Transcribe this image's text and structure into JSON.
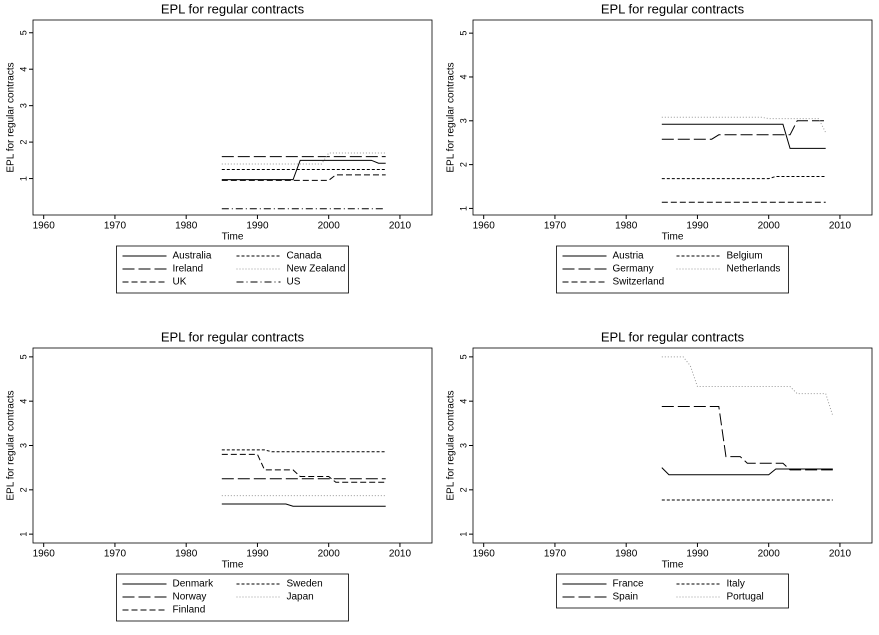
{
  "chart_data": [
    {
      "type": "line",
      "title": "EPL for regular contracts",
      "x_label": "Time",
      "y_label": "EPL for regular contracts",
      "x": [
        1985,
        1986,
        1987,
        1988,
        1989,
        1990,
        1991,
        1992,
        1993,
        1994,
        1995,
        1996,
        1997,
        1998,
        1999,
        2000,
        2001,
        2002,
        2003,
        2004,
        2005,
        2006,
        2007,
        2008
      ],
      "xlim": [
        1958.5,
        2014.5
      ],
      "xticks": [
        1960,
        1970,
        1980,
        1990,
        2000,
        2010
      ],
      "ylim": [
        0,
        5.35
      ],
      "yticks": [
        1,
        2,
        3,
        4,
        5
      ],
      "series": [
        {
          "name": "Australia",
          "color": "#000000",
          "style": "solid",
          "values": [
            0.97,
            0.97,
            0.97,
            0.97,
            0.97,
            0.97,
            0.97,
            0.97,
            0.97,
            0.97,
            0.97,
            1.5,
            1.5,
            1.5,
            1.5,
            1.5,
            1.5,
            1.5,
            1.5,
            1.5,
            1.5,
            1.5,
            1.42,
            1.42
          ]
        },
        {
          "name": "Canada",
          "color": "#000000",
          "style": "shortdash",
          "values": [
            1.25,
            1.25,
            1.25,
            1.25,
            1.25,
            1.25,
            1.25,
            1.25,
            1.25,
            1.25,
            1.25,
            1.25,
            1.25,
            1.25,
            1.25,
            1.25,
            1.25,
            1.25,
            1.25,
            1.25,
            1.25,
            1.25,
            1.25,
            1.25
          ]
        },
        {
          "name": "Ireland",
          "color": "#000000",
          "style": "longdash",
          "values": [
            1.6,
            1.6,
            1.6,
            1.6,
            1.6,
            1.6,
            1.6,
            1.6,
            1.6,
            1.6,
            1.6,
            1.6,
            1.6,
            1.6,
            1.6,
            1.6,
            1.6,
            1.6,
            1.6,
            1.6,
            1.6,
            1.6,
            1.6,
            1.6
          ]
        },
        {
          "name": "New Zealand",
          "color": "#999999",
          "style": "dot",
          "values": [
            1.4,
            1.4,
            1.4,
            1.4,
            1.4,
            1.4,
            1.4,
            1.4,
            1.4,
            1.4,
            1.4,
            1.4,
            1.4,
            1.4,
            1.4,
            1.7,
            1.7,
            1.7,
            1.7,
            1.7,
            1.7,
            1.7,
            1.7,
            1.7
          ]
        },
        {
          "name": "UK",
          "color": "#000000",
          "style": "dash",
          "values": [
            0.95,
            0.95,
            0.95,
            0.95,
            0.95,
            0.95,
            0.95,
            0.95,
            0.95,
            0.95,
            0.95,
            0.95,
            0.95,
            0.95,
            0.95,
            0.95,
            1.1,
            1.1,
            1.1,
            1.1,
            1.1,
            1.1,
            1.1,
            1.1
          ]
        },
        {
          "name": "US",
          "color": "#000000",
          "style": "dashdot",
          "values": [
            0.17,
            0.17,
            0.17,
            0.17,
            0.17,
            0.17,
            0.17,
            0.17,
            0.17,
            0.17,
            0.17,
            0.17,
            0.17,
            0.17,
            0.17,
            0.17,
            0.17,
            0.17,
            0.17,
            0.17,
            0.17,
            0.17,
            0.17,
            0.17
          ]
        }
      ]
    },
    {
      "type": "line",
      "title": "EPL for regular contracts",
      "x_label": "Time",
      "y_label": "EPL for regular contracts",
      "x": [
        1985,
        1986,
        1987,
        1988,
        1989,
        1990,
        1991,
        1992,
        1993,
        1994,
        1995,
        1996,
        1997,
        1998,
        1999,
        2000,
        2001,
        2002,
        2003,
        2004,
        2005,
        2006,
        2007,
        2008
      ],
      "xlim": [
        1958.5,
        2014.5
      ],
      "xticks": [
        1960,
        1970,
        1980,
        1990,
        2000,
        2010
      ],
      "ylim": [
        0.85,
        5.3
      ],
      "yticks": [
        1,
        2,
        3,
        4,
        5
      ],
      "series": [
        {
          "name": "Austria",
          "color": "#000000",
          "style": "solid",
          "values": [
            2.92,
            2.92,
            2.92,
            2.92,
            2.92,
            2.92,
            2.92,
            2.92,
            2.92,
            2.92,
            2.92,
            2.92,
            2.92,
            2.92,
            2.92,
            2.92,
            2.92,
            2.92,
            2.37,
            2.37,
            2.37,
            2.37,
            2.37,
            2.37
          ]
        },
        {
          "name": "Belgium",
          "color": "#000000",
          "style": "shortdash",
          "values": [
            1.68,
            1.68,
            1.68,
            1.68,
            1.68,
            1.68,
            1.68,
            1.68,
            1.68,
            1.68,
            1.68,
            1.68,
            1.68,
            1.68,
            1.68,
            1.68,
            1.73,
            1.73,
            1.73,
            1.73,
            1.73,
            1.73,
            1.73,
            1.73
          ]
        },
        {
          "name": "Germany",
          "color": "#000000",
          "style": "longdash",
          "values": [
            2.58,
            2.58,
            2.58,
            2.58,
            2.58,
            2.58,
            2.58,
            2.58,
            2.68,
            2.68,
            2.68,
            2.68,
            2.68,
            2.68,
            2.68,
            2.68,
            2.68,
            2.68,
            2.68,
            3.0,
            3.0,
            3.0,
            3.0,
            3.0
          ]
        },
        {
          "name": "Netherlands",
          "color": "#999999",
          "style": "dot",
          "values": [
            3.08,
            3.08,
            3.08,
            3.08,
            3.08,
            3.08,
            3.08,
            3.08,
            3.08,
            3.08,
            3.08,
            3.08,
            3.08,
            3.08,
            3.08,
            3.05,
            3.05,
            3.05,
            3.05,
            3.05,
            3.05,
            3.05,
            3.05,
            2.73
          ]
        },
        {
          "name": "Switzerland",
          "color": "#000000",
          "style": "dash",
          "values": [
            1.14,
            1.14,
            1.14,
            1.14,
            1.14,
            1.14,
            1.14,
            1.14,
            1.14,
            1.14,
            1.14,
            1.14,
            1.14,
            1.14,
            1.14,
            1.14,
            1.14,
            1.14,
            1.14,
            1.14,
            1.14,
            1.14,
            1.14,
            1.14
          ]
        }
      ]
    },
    {
      "type": "line",
      "title": "EPL for regular contracts",
      "x_label": "Time",
      "y_label": "EPL for regular contracts",
      "x": [
        1985,
        1986,
        1987,
        1988,
        1989,
        1990,
        1991,
        1992,
        1993,
        1994,
        1995,
        1996,
        1997,
        1998,
        1999,
        2000,
        2001,
        2002,
        2003,
        2004,
        2005,
        2006,
        2007,
        2008
      ],
      "xlim": [
        1958.5,
        2014.5
      ],
      "xticks": [
        1960,
        1970,
        1980,
        1990,
        2000,
        2010
      ],
      "ylim": [
        0.8,
        5.2
      ],
      "yticks": [
        1,
        2,
        3,
        4,
        5
      ],
      "series": [
        {
          "name": "Denmark",
          "color": "#000000",
          "style": "solid",
          "values": [
            1.68,
            1.68,
            1.68,
            1.68,
            1.68,
            1.68,
            1.68,
            1.68,
            1.68,
            1.68,
            1.63,
            1.63,
            1.63,
            1.63,
            1.63,
            1.63,
            1.63,
            1.63,
            1.63,
            1.63,
            1.63,
            1.63,
            1.63,
            1.63
          ]
        },
        {
          "name": "Sweden",
          "color": "#000000",
          "style": "shortdash",
          "values": [
            2.9,
            2.9,
            2.9,
            2.9,
            2.9,
            2.9,
            2.9,
            2.86,
            2.86,
            2.86,
            2.86,
            2.86,
            2.86,
            2.86,
            2.86,
            2.86,
            2.86,
            2.86,
            2.86,
            2.86,
            2.86,
            2.86,
            2.86,
            2.86
          ]
        },
        {
          "name": "Norway",
          "color": "#000000",
          "style": "longdash",
          "values": [
            2.25,
            2.25,
            2.25,
            2.25,
            2.25,
            2.25,
            2.25,
            2.25,
            2.25,
            2.25,
            2.25,
            2.25,
            2.25,
            2.25,
            2.25,
            2.25,
            2.25,
            2.25,
            2.25,
            2.25,
            2.25,
            2.25,
            2.25,
            2.25
          ]
        },
        {
          "name": "Japan",
          "color": "#999999",
          "style": "dot",
          "values": [
            1.87,
            1.87,
            1.87,
            1.87,
            1.87,
            1.87,
            1.87,
            1.87,
            1.87,
            1.87,
            1.87,
            1.87,
            1.87,
            1.87,
            1.87,
            1.87,
            1.87,
            1.87,
            1.87,
            1.87,
            1.87,
            1.87,
            1.87,
            1.87
          ]
        },
        {
          "name": "Finland",
          "color": "#000000",
          "style": "dash",
          "values": [
            2.8,
            2.8,
            2.8,
            2.8,
            2.8,
            2.8,
            2.45,
            2.45,
            2.45,
            2.45,
            2.45,
            2.3,
            2.3,
            2.3,
            2.3,
            2.3,
            2.17,
            2.17,
            2.17,
            2.17,
            2.17,
            2.17,
            2.17,
            2.17
          ]
        }
      ]
    },
    {
      "type": "line",
      "title": "EPL for regular contracts",
      "x_label": "Time",
      "y_label": "EPL for regular contracts",
      "x": [
        1985,
        1986,
        1987,
        1988,
        1989,
        1990,
        1991,
        1992,
        1993,
        1994,
        1995,
        1996,
        1997,
        1998,
        1999,
        2000,
        2001,
        2002,
        2003,
        2004,
        2005,
        2006,
        2007,
        2008,
        2009
      ],
      "xlim": [
        1958.5,
        2014.5
      ],
      "xticks": [
        1960,
        1970,
        1980,
        1990,
        2000,
        2010
      ],
      "ylim": [
        0.8,
        5.2
      ],
      "yticks": [
        1,
        2,
        3,
        4,
        5
      ],
      "series": [
        {
          "name": "France",
          "color": "#000000",
          "style": "solid",
          "values": [
            2.5,
            2.34,
            2.34,
            2.34,
            2.34,
            2.34,
            2.34,
            2.34,
            2.34,
            2.34,
            2.34,
            2.34,
            2.34,
            2.34,
            2.34,
            2.34,
            2.47,
            2.47,
            2.47,
            2.47,
            2.47,
            2.47,
            2.47,
            2.47,
            2.47
          ]
        },
        {
          "name": "Italy",
          "color": "#000000",
          "style": "shortdash",
          "values": [
            1.77,
            1.77,
            1.77,
            1.77,
            1.77,
            1.77,
            1.77,
            1.77,
            1.77,
            1.77,
            1.77,
            1.77,
            1.77,
            1.77,
            1.77,
            1.77,
            1.77,
            1.77,
            1.77,
            1.77,
            1.77,
            1.77,
            1.77,
            1.77,
            1.77
          ]
        },
        {
          "name": "Spain",
          "color": "#000000",
          "style": "longdash",
          "values": [
            3.88,
            3.88,
            3.88,
            3.88,
            3.88,
            3.88,
            3.88,
            3.88,
            3.88,
            2.75,
            2.75,
            2.75,
            2.6,
            2.6,
            2.6,
            2.6,
            2.6,
            2.6,
            2.45,
            2.45,
            2.45,
            2.45,
            2.45,
            2.45,
            2.45
          ]
        },
        {
          "name": "Portugal",
          "color": "#999999",
          "style": "dot",
          "values": [
            5.0,
            5.0,
            5.0,
            5.0,
            4.8,
            4.33,
            4.33,
            4.33,
            4.33,
            4.33,
            4.33,
            4.33,
            4.33,
            4.33,
            4.33,
            4.33,
            4.33,
            4.33,
            4.33,
            4.17,
            4.17,
            4.17,
            4.17,
            4.17,
            3.67
          ]
        }
      ]
    }
  ]
}
